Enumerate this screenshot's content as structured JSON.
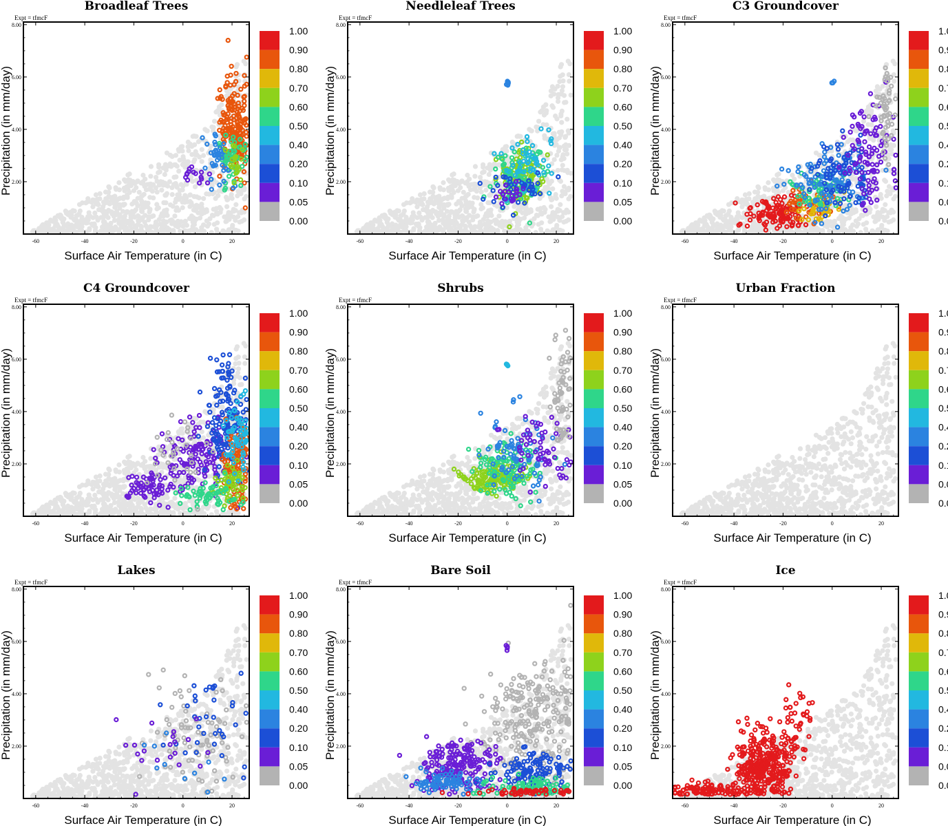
{
  "chart_data": {
    "type": "scatter",
    "expt_label": "Expt = tfmcF",
    "xlabel": "Surface Air Temperature (in C)",
    "ylabel": "Precipitation (in mm/day)",
    "xlim": [
      -65,
      27
    ],
    "ylim": [
      0,
      8.1
    ],
    "x_ticks": [
      -60,
      -40,
      -20,
      0,
      20
    ],
    "y_ticks": [
      2.0,
      4.0,
      6.0,
      8.0
    ],
    "x_tick_labels": [
      "-60",
      "-40",
      "-20",
      "0",
      "20"
    ],
    "y_tick_labels": [
      "2.00",
      "4.00",
      "6.00",
      "8.00"
    ],
    "colorbar": {
      "labels": [
        "1.00",
        "0.90",
        "0.80",
        "0.70",
        "0.60",
        "0.50",
        "0.40",
        "0.20",
        "0.10",
        "0.05",
        "0.00"
      ],
      "colors": [
        "#e31a1c",
        "#e8560c",
        "#e0b80a",
        "#8ed21c",
        "#2fd68a",
        "#22b8e0",
        "#2b83e0",
        "#1c4fd6",
        "#6a1ed6",
        "#b3b3b3"
      ]
    },
    "background_color": "#e3e3e3",
    "panels": [
      {
        "title": "Broadleaf Trees",
        "clusters": [
          {
            "cx": 21,
            "cy": 4.2,
            "sx": 3,
            "sy": 1.0,
            "n": 200,
            "c": 1
          },
          {
            "cx": 20,
            "cy": 2.8,
            "sx": 3,
            "sy": 0.5,
            "n": 50,
            "c": 4
          },
          {
            "cx": 14,
            "cy": 2.8,
            "sx": 3,
            "sy": 0.6,
            "n": 40,
            "c": 6
          },
          {
            "cx": 5,
            "cy": 2.2,
            "sx": 4,
            "sy": 0.3,
            "n": 15,
            "c": 8
          },
          {
            "cx": 22,
            "cy": 2.6,
            "sx": 2,
            "sy": 0.4,
            "n": 20,
            "c": 3
          }
        ]
      },
      {
        "title": "Needleleaf Trees",
        "clusters": [
          {
            "cx": 5,
            "cy": 2.2,
            "sx": 4,
            "sy": 0.5,
            "n": 120,
            "c": 3
          },
          {
            "cx": 5,
            "cy": 2.1,
            "sx": 5,
            "sy": 0.6,
            "n": 80,
            "c": 4
          },
          {
            "cx": 8,
            "cy": 2.8,
            "sx": 5,
            "sy": 0.7,
            "n": 60,
            "c": 5
          },
          {
            "cx": 2,
            "cy": 1.8,
            "sx": 6,
            "sy": 0.4,
            "n": 40,
            "c": 7
          },
          {
            "cx": 0,
            "cy": 1.6,
            "sx": 4,
            "sy": 0.2,
            "n": 20,
            "c": 8
          },
          {
            "cx": 0,
            "cy": 5.8,
            "sx": 0.3,
            "sy": 0.05,
            "n": 5,
            "c": 6
          }
        ]
      },
      {
        "title": "C3 Groundcover",
        "clusters": [
          {
            "cx": -22,
            "cy": 0.8,
            "sx": 6,
            "sy": 0.3,
            "n": 120,
            "c": 0
          },
          {
            "cx": -10,
            "cy": 1.2,
            "sx": 5,
            "sy": 0.3,
            "n": 50,
            "c": 1
          },
          {
            "cx": -5,
            "cy": 1.0,
            "sx": 4,
            "sy": 0.3,
            "n": 40,
            "c": 2
          },
          {
            "cx": -5,
            "cy": 1.6,
            "sx": 6,
            "sy": 0.4,
            "n": 60,
            "c": 4
          },
          {
            "cx": 0,
            "cy": 2.0,
            "sx": 8,
            "sy": 0.6,
            "n": 120,
            "c": 6
          },
          {
            "cx": 5,
            "cy": 2.2,
            "sx": 6,
            "sy": 0.6,
            "n": 80,
            "c": 7
          },
          {
            "cx": 15,
            "cy": 3.0,
            "sx": 5,
            "sy": 1.0,
            "n": 100,
            "c": 8
          },
          {
            "cx": 22,
            "cy": 4.5,
            "sx": 2,
            "sy": 1.0,
            "n": 50,
            "c": 9
          },
          {
            "cx": 0,
            "cy": 5.8,
            "sx": 0.3,
            "sy": 0.05,
            "n": 4,
            "c": 6
          }
        ]
      },
      {
        "title": "C4 Groundcover",
        "clusters": [
          {
            "cx": -15,
            "cy": 1.1,
            "sx": 5,
            "sy": 0.3,
            "n": 60,
            "c": 8
          },
          {
            "cx": 5,
            "cy": 2.2,
            "sx": 8,
            "sy": 0.8,
            "n": 150,
            "c": 8
          },
          {
            "cx": 18,
            "cy": 3.5,
            "sx": 4,
            "sy": 1.2,
            "n": 150,
            "c": 7
          },
          {
            "cx": 22,
            "cy": 2.0,
            "sx": 3,
            "sy": 0.8,
            "n": 100,
            "c": 1
          },
          {
            "cx": 20,
            "cy": 1.2,
            "sx": 4,
            "sy": 0.4,
            "n": 60,
            "c": 3
          },
          {
            "cx": 10,
            "cy": 0.8,
            "sx": 6,
            "sy": 0.3,
            "n": 60,
            "c": 4
          },
          {
            "cx": 22,
            "cy": 3.0,
            "sx": 3,
            "sy": 0.8,
            "n": 60,
            "c": 5
          },
          {
            "cx": 0,
            "cy": 2.5,
            "sx": 6,
            "sy": 0.8,
            "n": 30,
            "c": 9
          }
        ]
      },
      {
        "title": "Shrubs",
        "clusters": [
          {
            "cx": -5,
            "cy": 1.5,
            "sx": 6,
            "sy": 0.3,
            "n": 150,
            "c": 3
          },
          {
            "cx": 0,
            "cy": 1.8,
            "sx": 7,
            "sy": 0.5,
            "n": 100,
            "c": 4
          },
          {
            "cx": 5,
            "cy": 2.5,
            "sx": 7,
            "sy": 0.8,
            "n": 80,
            "c": 6
          },
          {
            "cx": 15,
            "cy": 2.5,
            "sx": 6,
            "sy": 0.7,
            "n": 60,
            "c": 8
          },
          {
            "cx": 22,
            "cy": 4.5,
            "sx": 2,
            "sy": 1.1,
            "n": 60,
            "c": 9
          },
          {
            "cx": 0,
            "cy": 5.8,
            "sx": 0.3,
            "sy": 0.05,
            "n": 4,
            "c": 5
          }
        ]
      },
      {
        "title": "Urban Fraction",
        "clusters": []
      },
      {
        "title": "Lakes",
        "clusters": [
          {
            "cx": 5,
            "cy": 2.5,
            "sx": 12,
            "sy": 1.0,
            "n": 80,
            "c": 9
          },
          {
            "cx": 10,
            "cy": 3.0,
            "sx": 10,
            "sy": 0.9,
            "n": 35,
            "c": 7
          },
          {
            "cx": -5,
            "cy": 1.8,
            "sx": 10,
            "sy": 0.7,
            "n": 20,
            "c": 8
          },
          {
            "cx": 0,
            "cy": 1.2,
            "sx": 10,
            "sy": 0.6,
            "n": 10,
            "c": 6
          }
        ]
      },
      {
        "title": "Bare Soil",
        "clusters": [
          {
            "cx": 10,
            "cy": 3.0,
            "sx": 10,
            "sy": 1.2,
            "n": 250,
            "c": 9
          },
          {
            "cx": -20,
            "cy": 1.2,
            "sx": 8,
            "sy": 0.5,
            "n": 200,
            "c": 8
          },
          {
            "cx": -25,
            "cy": 0.6,
            "sx": 6,
            "sy": 0.2,
            "n": 80,
            "c": 6
          },
          {
            "cx": 10,
            "cy": 1.0,
            "sx": 8,
            "sy": 0.4,
            "n": 120,
            "c": 7
          },
          {
            "cx": 10,
            "cy": 0.4,
            "sx": 10,
            "sy": 0.2,
            "n": 100,
            "c": 4
          },
          {
            "cx": 5,
            "cy": 0.2,
            "sx": 12,
            "sy": 0.1,
            "n": 50,
            "c": 0
          },
          {
            "cx": 0,
            "cy": 5.8,
            "sx": 0.3,
            "sy": 0.05,
            "n": 4,
            "c": 8
          }
        ]
      },
      {
        "title": "Ice",
        "clusters": [
          {
            "cx": -28,
            "cy": 1.2,
            "sx": 6,
            "sy": 0.6,
            "n": 350,
            "c": 0
          },
          {
            "cx": -50,
            "cy": 0.3,
            "sx": 8,
            "sy": 0.15,
            "n": 100,
            "c": 0
          },
          {
            "cx": -15,
            "cy": 2.8,
            "sx": 4,
            "sy": 0.7,
            "n": 40,
            "c": 0
          }
        ]
      }
    ]
  }
}
